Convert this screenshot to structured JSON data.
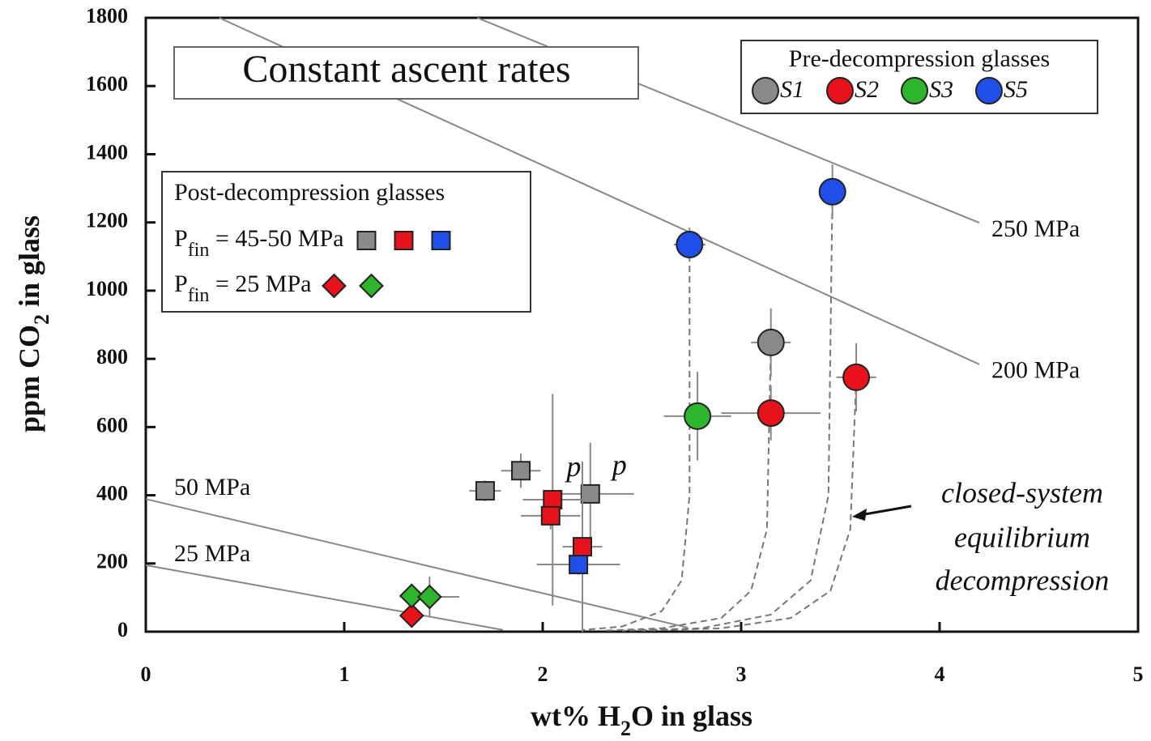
{
  "chart_data": {
    "type": "scatter",
    "title": "Constant ascent rates",
    "xlabel": [
      "wt% H",
      "2",
      "O in glass"
    ],
    "ylabel": [
      "ppm CO",
      "2",
      " in glass"
    ],
    "xlim": [
      0,
      5
    ],
    "xticks": [
      0,
      1,
      2,
      3,
      4,
      5
    ],
    "ylim": [
      0,
      1800
    ],
    "yticks": [
      0,
      200,
      400,
      600,
      800,
      1000,
      1200,
      1400,
      1600,
      1800
    ],
    "legend_title": "Pre-decompression glasses",
    "series": [
      {
        "name": "S1",
        "color": "#8a8a8a",
        "x": [
          3.15
        ],
        "values": [
          848
        ],
        "xerr": [
          0.1
        ],
        "yerr": [
          100
        ]
      },
      {
        "name": "S2",
        "color": "#e8121b",
        "x": [
          3.15,
          3.58
        ],
        "values": [
          641,
          746
        ],
        "xerr": [
          0.25,
          0.1
        ],
        "yerr": [
          80,
          100
        ]
      },
      {
        "name": "S3",
        "color": "#2db52d",
        "x": [
          2.78
        ],
        "values": [
          632
        ],
        "xerr": [
          0.17
        ],
        "yerr": [
          130
        ]
      },
      {
        "name": "S5",
        "color": "#1f4fe8",
        "x": [
          2.74,
          3.46
        ],
        "values": [
          1135,
          1290
        ],
        "xerr": [
          0.08,
          0.06
        ],
        "yerr": [
          50,
          80
        ]
      }
    ],
    "post_title": "Post-decompression glasses",
    "post_groups": [
      {
        "label": [
          "P",
          "fin",
          " = 45-50 MPa"
        ],
        "marker": "square",
        "series": [
          {
            "color": "#8a8a8a",
            "x": [
              1.71,
              1.89,
              2.24
            ],
            "values": [
              413,
              472,
              404
            ],
            "xerr": [
              0.08,
              0.1,
              0.22
            ],
            "yerr": [
              30,
              50,
              150
            ]
          },
          {
            "color": "#e8121b",
            "x": [
              2.05,
              2.04,
              2.2
            ],
            "values": [
              387,
              340,
              249
            ],
            "xerr": [
              0.15,
              0.15,
              0.1
            ],
            "yerr": [
              310,
              40,
              250
            ]
          },
          {
            "color": "#1f4fe8",
            "x": [
              2.18
            ],
            "values": [
              197
            ],
            "xerr": [
              0.21
            ],
            "yerr": [
              30
            ]
          }
        ]
      },
      {
        "label": [
          "P",
          "fin",
          " = 25 MPa"
        ],
        "marker": "diamond",
        "series": [
          {
            "color": "#e8121b",
            "x": [
              1.34
            ],
            "values": [
              47
            ],
            "xerr": [
              0.05
            ],
            "yerr": [
              20
            ]
          },
          {
            "color": "#2db52d",
            "x": [
              1.34,
              1.43
            ],
            "values": [
              105,
              102
            ],
            "xerr": [
              0.05,
              0.15
            ],
            "yerr": [
              30,
              60
            ]
          }
        ]
      }
    ],
    "isobars": [
      {
        "label": "250 MPa",
        "x": [
          1.67,
          4.2
        ],
        "values": [
          1800,
          1199
        ]
      },
      {
        "label": "200 MPa",
        "x": [
          0.37,
          4.2
        ],
        "values": [
          1800,
          784
        ]
      },
      {
        "label": "50 MPa",
        "x": [
          0,
          2.73
        ],
        "values": [
          389,
          12
        ]
      },
      {
        "label": "25 MPa",
        "x": [
          0,
          1.8
        ],
        "values": [
          195,
          5
        ]
      }
    ],
    "decompression_paths": [
      {
        "x": [
          2.74,
          2.74,
          2.7,
          2.6,
          2.4,
          2.2
        ],
        "values": [
          1135,
          400,
          150,
          60,
          15,
          5
        ]
      },
      {
        "x": [
          3.15,
          3.13,
          3.05,
          2.9,
          2.6,
          2.3
        ],
        "values": [
          848,
          300,
          120,
          40,
          10,
          3
        ]
      },
      {
        "x": [
          3.46,
          3.44,
          3.35,
          3.15,
          2.8,
          2.4
        ],
        "values": [
          1290,
          400,
          150,
          50,
          10,
          3
        ]
      },
      {
        "x": [
          3.58,
          3.55,
          3.45,
          3.25,
          2.9,
          2.5
        ],
        "values": [
          746,
          300,
          120,
          40,
          10,
          3
        ]
      }
    ],
    "point_notes": [
      {
        "text": "p",
        "x": 2.12,
        "y": 475
      },
      {
        "text": "p",
        "x": 2.35,
        "y": 480
      }
    ],
    "annotation": [
      "closed-system",
      "equilibrium",
      "decompression"
    ]
  }
}
